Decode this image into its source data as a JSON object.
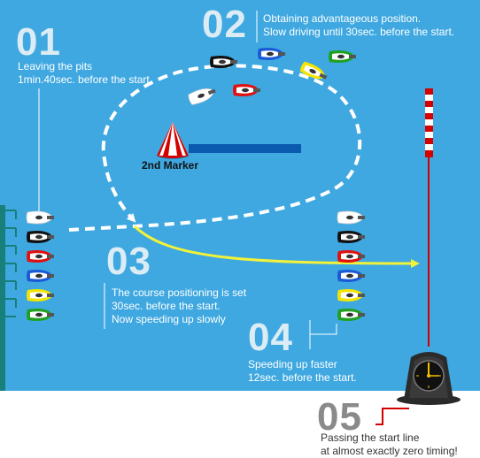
{
  "steps": [
    {
      "number": "01",
      "line1": "Leaving the pits",
      "line2": "1min.40sec. before the start."
    },
    {
      "number": "02",
      "line1": "Obtaining advantageous position.",
      "line2": "Slow driving until 30sec. before the start."
    },
    {
      "number": "03",
      "line1": "The course positioning is set",
      "line2": "30sec. before the start.",
      "line3": "Now speeding up slowly"
    },
    {
      "number": "04",
      "line1": "Speeding up faster",
      "line2": "12sec. before the start."
    },
    {
      "number": "05",
      "line1": "Passing the start line",
      "line2": "at almost exactly zero timing!"
    }
  ],
  "marker_label": "2nd Marker",
  "colors": {
    "water": "#3fa8e0",
    "pit_wall": "#17807a",
    "course_path": "#f2f23a",
    "start_line": "#d40000",
    "marker_bar": "#0a5bb0",
    "boat_colors": [
      "#ffffff",
      "#111111",
      "#e01010",
      "#1a5ad8",
      "#f5e400",
      "#20a020"
    ]
  },
  "icons": {
    "marker": "red-white-buoy-icon",
    "clock": "large-clock-icon",
    "boat": "racing-boat-icon",
    "pole": "striped-pole-icon"
  }
}
